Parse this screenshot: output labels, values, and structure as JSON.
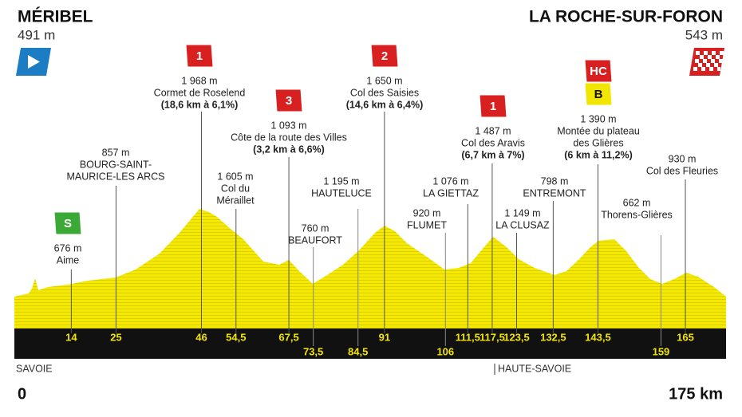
{
  "start": {
    "name": "MÉRIBEL",
    "altitude": "491 m"
  },
  "finish": {
    "name": "LA ROCHE-SUR-FORON",
    "altitude": "543 m"
  },
  "xlim": [
    {
      "value": 0,
      "label": "0"
    },
    {
      "value": 175,
      "label": "175 km"
    }
  ],
  "regions": [
    "SAVOIE",
    "HAUTE-SAVOIE"
  ],
  "ticks": [
    {
      "value": 14,
      "label": "14",
      "altitude": "676 m",
      "name": [
        "Aime"
      ],
      "badges": [
        {
          "label": "S",
          "color": "#3aa935"
        }
      ]
    },
    {
      "value": 25,
      "label": "25",
      "altitude": "857 m",
      "name": [
        "BOURG-SAINT-",
        "MAURICE-LES ARCS"
      ]
    },
    {
      "value": 46,
      "label": "46",
      "altitude": "1 968 m",
      "name": [
        "Cormet de Roselend"
      ],
      "climb": "(18,6 km à 6,1%)",
      "badges": [
        {
          "label": "1",
          "color": "#d7201f"
        }
      ]
    },
    {
      "value": 54.5,
      "label": "54,5",
      "altitude": "1 605 m",
      "name": [
        "Col du",
        "Méraillet"
      ]
    },
    {
      "value": 67.5,
      "label": "67,5",
      "altitude": "1 093 m",
      "name": [
        "Côte de la route des Villes"
      ],
      "climb": "(3,2 km à 6,6%)",
      "badges": [
        {
          "label": "3",
          "color": "#d7201f"
        }
      ]
    },
    {
      "value": 91,
      "label": "91",
      "altitude": "1 650 m",
      "name": [
        "Col des Saisies"
      ],
      "climb": "(14,6 km à 6,4%)",
      "badges": [
        {
          "label": "2",
          "color": "#d7201f"
        }
      ]
    },
    {
      "value": 111.5,
      "label": "111,5",
      "altitude": "1 076 m",
      "name": [
        "LA GIETTAZ"
      ]
    },
    {
      "value": 117.5,
      "label": "117,5",
      "altitude": "1 487 m",
      "name": [
        "Col des Aravis"
      ],
      "climb": "(6,7 km à 7%)",
      "badges": [
        {
          "label": "1",
          "color": "#d7201f"
        }
      ]
    },
    {
      "value": 123.5,
      "label": "123,5",
      "altitude": "1 149 m",
      "name": [
        "LA CLUSAZ"
      ]
    },
    {
      "value": 132.5,
      "label": "132,5",
      "altitude": "798 m",
      "name": [
        "ENTREMONT"
      ]
    },
    {
      "value": 143.5,
      "label": "143,5",
      "altitude": "1 390 m",
      "name": [
        "Montée du plateau",
        "des Glières"
      ],
      "climb": "(6 km à 11,2%)",
      "badges": [
        {
          "label": "B",
          "color": "#f2e500"
        },
        {
          "label": "HC",
          "color": "#d7201f"
        }
      ]
    },
    {
      "value": 165,
      "label": "165",
      "altitude": "930 m",
      "name": [
        "Col des Fleuries"
      ]
    }
  ],
  "ticks_lower": [
    {
      "value": 73.5,
      "label": "73,5",
      "altitude": "760 m",
      "name": [
        "BEAUFORT"
      ]
    },
    {
      "value": 84.5,
      "label": "84,5",
      "altitude": "1 195 m",
      "name": [
        "HAUTELUCE"
      ]
    },
    {
      "value": 106,
      "label": "106",
      "altitude": "920 m",
      "name": [
        "FLUMET"
      ]
    },
    {
      "value": 159,
      "label": "159",
      "altitude": "662 m",
      "name": [
        "Thorens-Glières"
      ]
    }
  ]
}
